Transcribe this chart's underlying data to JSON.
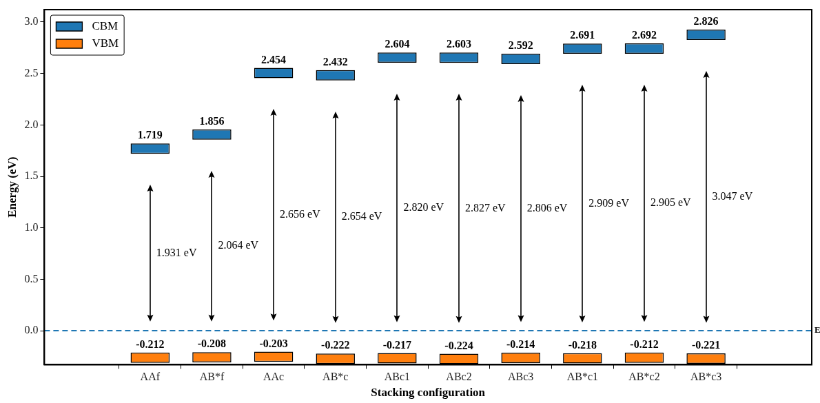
{
  "chart_data": {
    "type": "bar",
    "xlabel": "Stacking configuration",
    "ylabel": "Energy (eV)",
    "categories": [
      "AAf",
      "AB*f",
      "AAc",
      "AB*c",
      "ABc1",
      "ABc2",
      "ABc3",
      "AB*c1",
      "AB*c2",
      "AB*c3"
    ],
    "series": [
      {
        "name": "CBM",
        "color": "#1f77b4",
        "base": [
          1.719,
          1.856,
          2.454,
          2.432,
          2.604,
          2.603,
          2.592,
          2.691,
          2.692,
          2.826
        ],
        "values": [
          0.1,
          0.1,
          0.1,
          0.1,
          0.1,
          0.1,
          0.1,
          0.1,
          0.1,
          0.1
        ]
      },
      {
        "name": "VBM",
        "color": "#ff7f0e",
        "base": [
          -0.212,
          -0.208,
          -0.203,
          -0.222,
          -0.217,
          -0.224,
          -0.214,
          -0.218,
          -0.212,
          -0.221
        ],
        "values": [
          -0.1,
          -0.1,
          -0.1,
          -0.1,
          -0.1,
          -0.1,
          -0.1,
          -0.1,
          -0.1,
          -0.1
        ]
      }
    ],
    "ylim": [
      -0.33,
      3.12
    ],
    "yticks": [
      {
        "value": 0,
        "label": "0.0"
      },
      0.5,
      {
        "value": 1,
        "label": "1.0"
      },
      1.5,
      {
        "value": 2,
        "label": "2.0"
      },
      2.5,
      {
        "value": 3,
        "label": "3.0"
      }
    ],
    "grid": false,
    "legend": "top left",
    "ref_lines": [
      {
        "axis": "y",
        "value": 0,
        "label": "E",
        "color": "#1f77b4",
        "line_style": "dashed"
      }
    ],
    "annotations": [
      {
        "text": "1.719",
        "x": "AAf",
        "y": 1.719
      },
      {
        "text": "1.856",
        "x": "AB*f",
        "y": 1.856
      },
      {
        "text": "2.454",
        "x": "AAc",
        "y": 2.454
      },
      {
        "text": "2.432",
        "x": "AB*c",
        "y": 2.432
      },
      {
        "text": "2.604",
        "x": "ABc1",
        "y": 2.604
      },
      {
        "text": "2.603",
        "x": "ABc2",
        "y": 2.603
      },
      {
        "text": "2.592",
        "x": "ABc3",
        "y": 2.592
      },
      {
        "text": "2.691",
        "x": "AB*c1",
        "y": 2.691
      },
      {
        "text": "2.692",
        "x": "AB*c2",
        "y": 2.692
      },
      {
        "text": "2.826",
        "x": "AB*c3",
        "y": 2.826
      },
      {
        "text": "-0.212",
        "x": "AAf",
        "y": -0.212
      },
      {
        "text": "-0.208",
        "x": "AB*f",
        "y": -0.208
      },
      {
        "text": "-0.203",
        "x": "AAc",
        "y": -0.203
      },
      {
        "text": "-0.222",
        "x": "AB*c",
        "y": -0.222
      },
      {
        "text": "-0.217",
        "x": "ABc1",
        "y": -0.217
      },
      {
        "text": "-0.224",
        "x": "ABc2",
        "y": -0.224
      },
      {
        "text": "-0.214",
        "x": "ABc3",
        "y": -0.214
      },
      {
        "text": "-0.218",
        "x": "AB*c1",
        "y": -0.218
      },
      {
        "text": "-0.212",
        "x": "AB*c2",
        "y": -0.212
      },
      {
        "text": "-0.221",
        "x": "AB*c3",
        "y": -0.221
      },
      "1.931 eV",
      "2.064 eV",
      "2.656 eV",
      "2.654 eV",
      "2.820 eV",
      "2.827 eV",
      "2.806 eV",
      "2.909 eV",
      "2.905 eV",
      "3.047 eV"
    ]
  }
}
